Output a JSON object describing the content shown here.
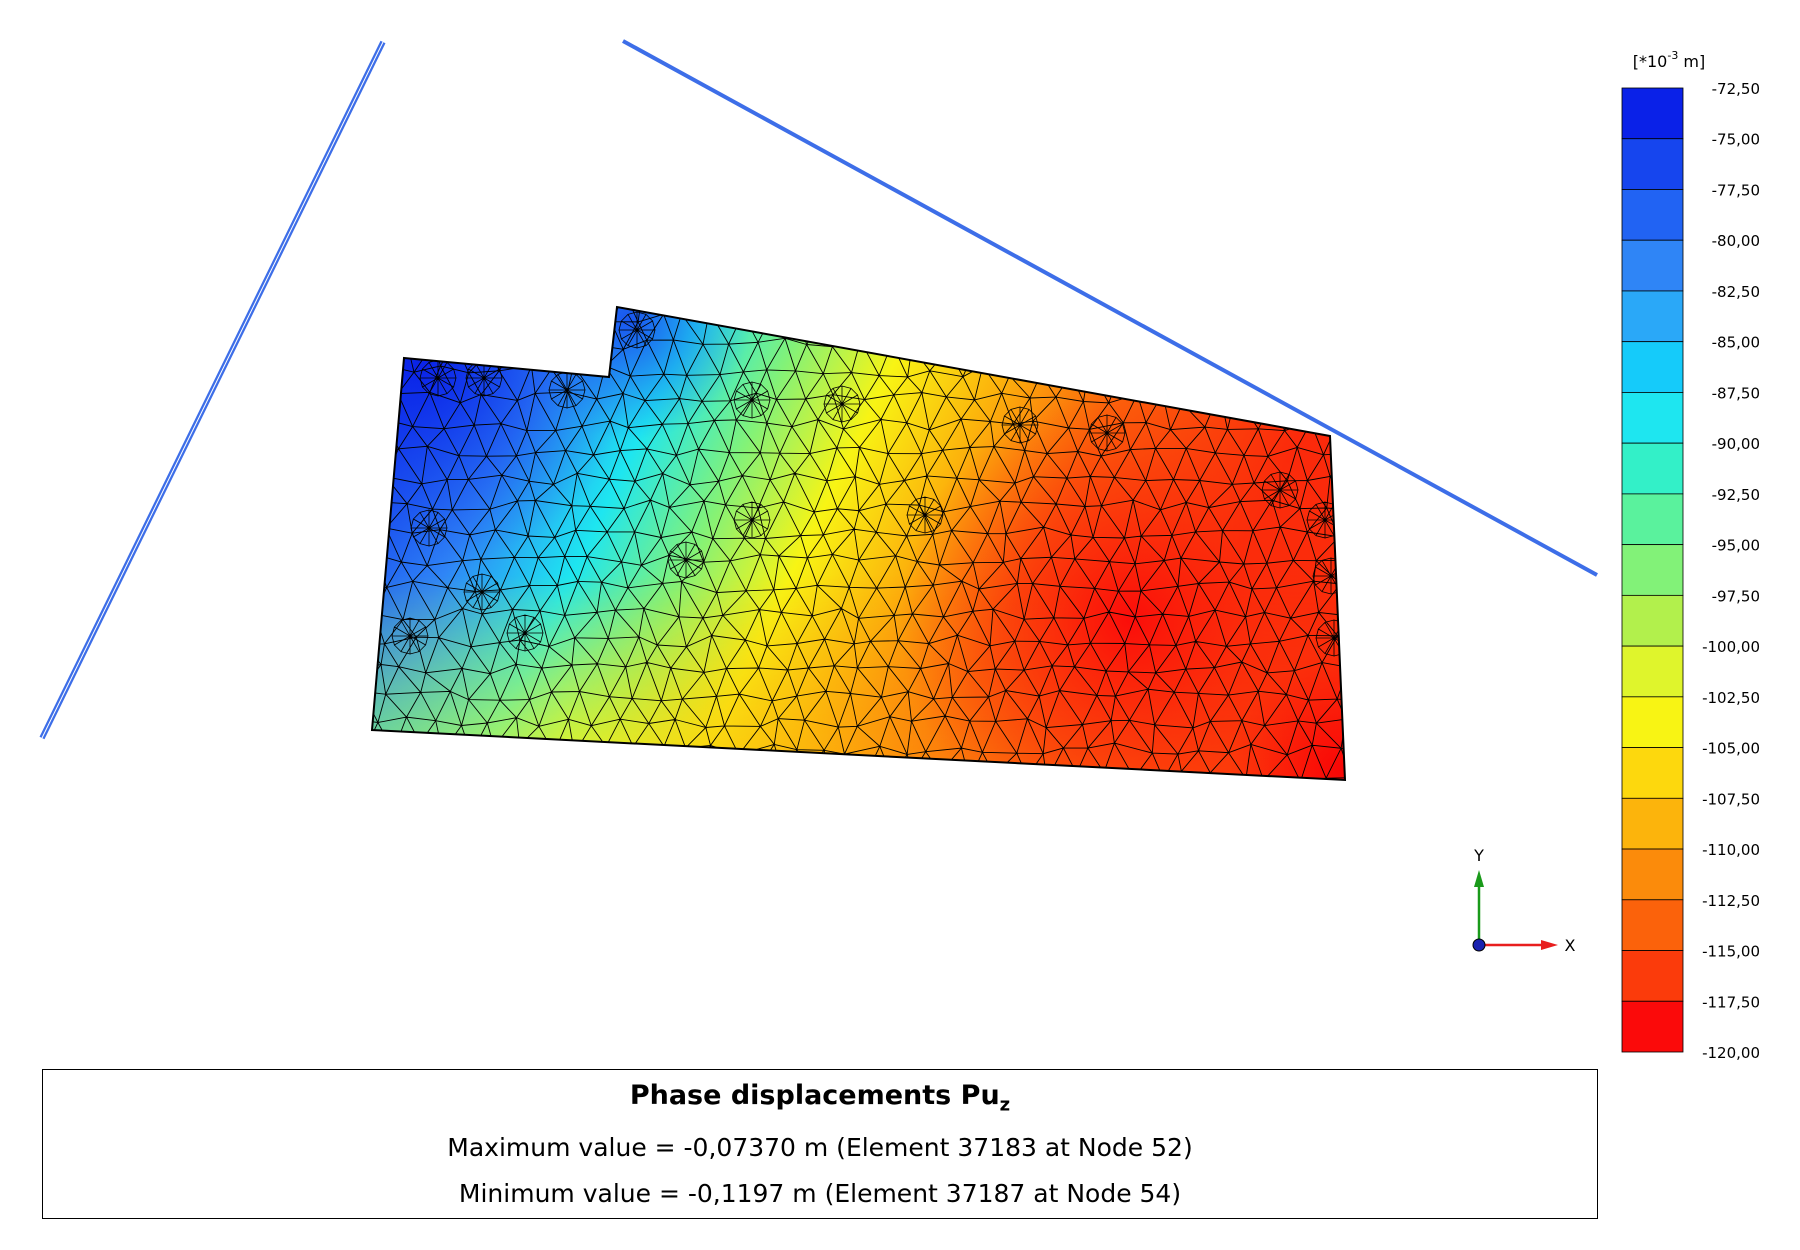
{
  "legend": {
    "unit_prefix": "[*10",
    "unit_exponent": "-3",
    "unit_suffix": " m]",
    "ticks": [
      "-72,50",
      "-75,00",
      "-77,50",
      "-80,00",
      "-82,50",
      "-85,00",
      "-87,50",
      "-90,00",
      "-92,50",
      "-95,00",
      "-97,50",
      "-100,00",
      "-102,50",
      "-105,00",
      "-107,50",
      "-110,00",
      "-112,50",
      "-115,00",
      "-117,50",
      "-120,00"
    ],
    "colors": [
      "#0a21e8",
      "#1645ee",
      "#2163f3",
      "#2f85f6",
      "#2aa8f8",
      "#15cbfa",
      "#1ee6f0",
      "#33f0c8",
      "#5af29d",
      "#82f278",
      "#b2f04c",
      "#dff52c",
      "#f8f414",
      "#fdd80d",
      "#fcb40c",
      "#fb8b0b",
      "#fb620b",
      "#fb3b0b",
      "#fb0a0a"
    ]
  },
  "axes": {
    "y_label": "Y",
    "x_label": "X",
    "colors": {
      "y": "#1a9a1a",
      "x": "#e81e1e",
      "z": "#1a22b0"
    }
  },
  "info": {
    "title": "Phase displacements Pu",
    "title_sub": "z",
    "max_line": "Maximum value = -0,07370 m (Element 37183 at Node 52)",
    "min_line": "Minimum value = -0,1197 m (Element 37187 at Node 54)"
  },
  "colors": {
    "boundary_line": "#3d6ee8",
    "mesh_line": "#000000",
    "background": "#ffffff"
  }
}
